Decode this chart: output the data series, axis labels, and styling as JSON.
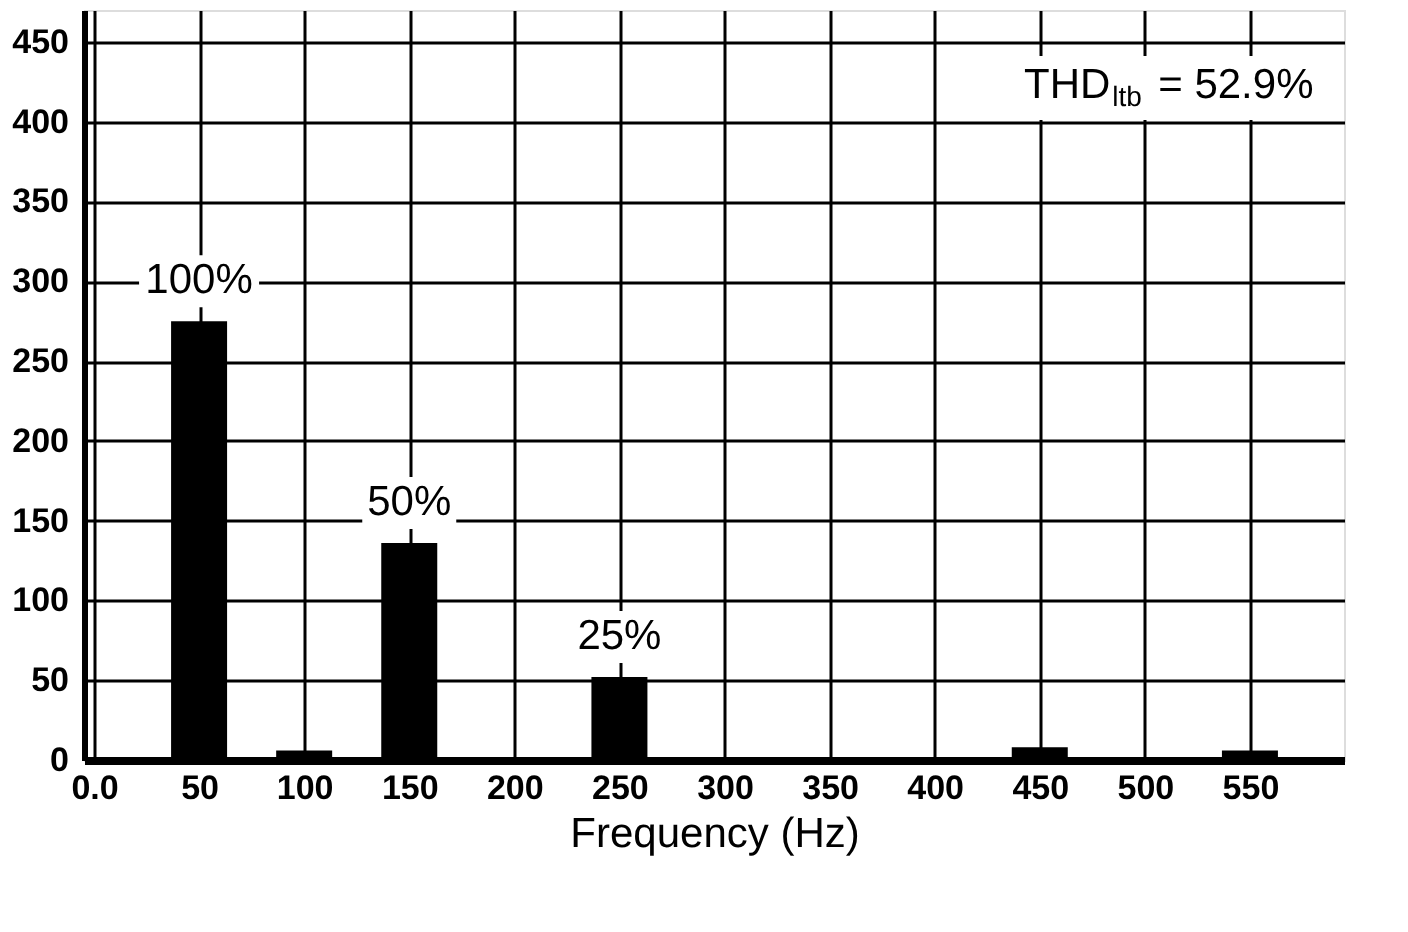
{
  "chart_data": {
    "type": "bar",
    "xlabel": "Frequency (Hz)",
    "x": [
      50,
      100,
      150,
      250,
      450,
      550
    ],
    "values": [
      275,
      6,
      136,
      52,
      8,
      6
    ],
    "color": "#000000",
    "xlim": [
      0,
      590
    ],
    "xticks": [
      {
        "value": 0,
        "label": "0.0"
      },
      50,
      100,
      150,
      200,
      250,
      300,
      350,
      400,
      450,
      500,
      550
    ],
    "ylim": [
      0,
      470
    ],
    "yticks": [
      0,
      50,
      100,
      150,
      200,
      250,
      300,
      350,
      400,
      450
    ],
    "grid": true,
    "annotations": [
      {
        "text": "100%",
        "x": 50,
        "y": 275
      },
      {
        "text": "50%",
        "x": 150,
        "y": 136
      },
      {
        "text": "25%",
        "x": 250,
        "y": 52
      },
      "THD$_{ltb}$ = 52.9%"
    ]
  }
}
